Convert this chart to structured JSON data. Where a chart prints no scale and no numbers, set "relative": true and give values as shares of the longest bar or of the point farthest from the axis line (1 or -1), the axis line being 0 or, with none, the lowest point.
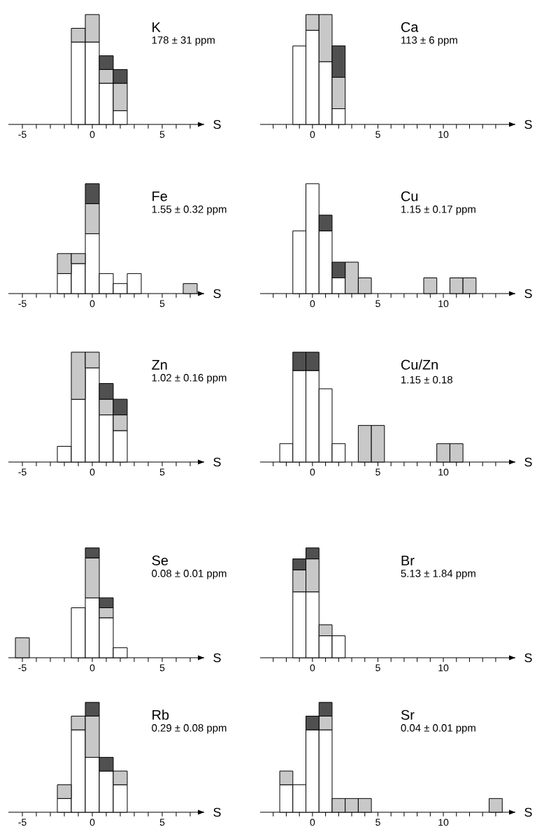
{
  "chart_data": [
    {
      "type": "bar",
      "stacked": true,
      "relative": true,
      "title": "K",
      "subtitle": "178 ± 31 ppm",
      "xlabel": "S",
      "tick_labels": "x",
      "xlim": [
        -6,
        8
      ],
      "xticks": [
        -5,
        {
          "value": -4,
          "label": null
        },
        {
          "value": -3,
          "label": null
        },
        {
          "value": -2,
          "label": null
        },
        {
          "value": -1,
          "label": null
        },
        0,
        {
          "value": 1,
          "label": null
        },
        {
          "value": 2,
          "label": null
        },
        {
          "value": 3,
          "label": null
        },
        {
          "value": 4,
          "label": null
        },
        5,
        {
          "value": 6,
          "label": null
        },
        {
          "value": 7,
          "label": null
        }
      ],
      "x": [
        -1,
        0,
        1,
        2
      ],
      "series": [
        {
          "color": "#ffffff",
          "values": [
            0.75,
            0.75,
            0.375,
            0.125
          ]
        },
        {
          "color": "#c8c8c8",
          "values": [
            0.125,
            0.25,
            0.125,
            0.25
          ]
        },
        {
          "color": "#505050",
          "values": [
            0,
            0,
            0.125,
            0.125
          ]
        }
      ]
    },
    {
      "type": "bar",
      "stacked": true,
      "relative": true,
      "title": "Ca",
      "subtitle": "113 ± 6 ppm",
      "xlabel": "S",
      "tick_labels": "x",
      "xlim": [
        -4,
        15.5
      ],
      "xticks": [
        {
          "value": -3,
          "label": null
        },
        {
          "value": -2,
          "label": null
        },
        {
          "value": -1,
          "label": null
        },
        0,
        {
          "value": 1,
          "label": null
        },
        {
          "value": 2,
          "label": null
        },
        {
          "value": 3,
          "label": null
        },
        {
          "value": 4,
          "label": null
        },
        5,
        {
          "value": 6,
          "label": null
        },
        {
          "value": 7,
          "label": null
        },
        {
          "value": 8,
          "label": null
        },
        {
          "value": 9,
          "label": null
        },
        10,
        {
          "value": 11,
          "label": null
        },
        {
          "value": 12,
          "label": null
        },
        {
          "value": 13,
          "label": null
        },
        {
          "value": 14,
          "label": null
        }
      ],
      "x": [
        -1,
        0,
        1,
        2
      ],
      "series": [
        {
          "color": "#ffffff",
          "values": [
            0.714,
            0.857,
            0.571,
            0.143
          ]
        },
        {
          "color": "#c8c8c8",
          "values": [
            0,
            0.143,
            0.429,
            0.286
          ]
        },
        {
          "color": "#505050",
          "values": [
            0,
            0,
            0,
            0.286
          ]
        }
      ]
    },
    {
      "type": "bar",
      "stacked": true,
      "relative": true,
      "title": "Fe",
      "subtitle": "1.55 ± 0.32 ppm",
      "xlabel": "S",
      "tick_labels": "x",
      "xlim": [
        -6,
        8
      ],
      "xticks": [
        -5,
        {
          "value": -4,
          "label": null
        },
        {
          "value": -3,
          "label": null
        },
        {
          "value": -2,
          "label": null
        },
        {
          "value": -1,
          "label": null
        },
        0,
        {
          "value": 1,
          "label": null
        },
        {
          "value": 2,
          "label": null
        },
        {
          "value": 3,
          "label": null
        },
        {
          "value": 4,
          "label": null
        },
        5,
        {
          "value": 6,
          "label": null
        },
        {
          "value": 7,
          "label": null
        }
      ],
      "x": [
        -2,
        -1,
        0,
        1,
        2,
        3,
        4,
        5,
        6,
        7
      ],
      "series": [
        {
          "color": "#ffffff",
          "values": [
            0.182,
            0.273,
            0.545,
            0.182,
            0.091,
            0.182,
            0,
            0,
            0,
            0
          ]
        },
        {
          "color": "#c8c8c8",
          "values": [
            0.182,
            0.091,
            0.273,
            0,
            0,
            0,
            0,
            0,
            0,
            0.091
          ]
        },
        {
          "color": "#505050",
          "values": [
            0,
            0,
            0.182,
            0,
            0,
            0,
            0,
            0,
            0,
            0
          ]
        }
      ]
    },
    {
      "type": "bar",
      "stacked": true,
      "relative": true,
      "title": "Cu",
      "subtitle": "1.15 ± 0.17 ppm",
      "xlabel": "S",
      "tick_labels": "x",
      "xlim": [
        -4,
        15.5
      ],
      "xticks": [
        {
          "value": -3,
          "label": null
        },
        {
          "value": -2,
          "label": null
        },
        {
          "value": -1,
          "label": null
        },
        0,
        {
          "value": 1,
          "label": null
        },
        {
          "value": 2,
          "label": null
        },
        {
          "value": 3,
          "label": null
        },
        {
          "value": 4,
          "label": null
        },
        5,
        {
          "value": 6,
          "label": null
        },
        {
          "value": 7,
          "label": null
        },
        {
          "value": 8,
          "label": null
        },
        {
          "value": 9,
          "label": null
        },
        10,
        {
          "value": 11,
          "label": null
        },
        {
          "value": 12,
          "label": null
        },
        {
          "value": 13,
          "label": null
        },
        {
          "value": 14,
          "label": null
        }
      ],
      "x": [
        -1,
        0,
        1,
        2,
        3,
        4,
        5,
        6,
        7,
        8,
        9,
        10,
        11,
        12
      ],
      "series": [
        {
          "color": "#ffffff",
          "values": [
            0.571,
            1,
            0.571,
            0.143,
            0,
            0,
            0,
            0,
            0,
            0,
            0,
            0,
            0,
            0
          ]
        },
        {
          "color": "#c8c8c8",
          "values": [
            0,
            0,
            0,
            0,
            0.286,
            0.143,
            0,
            0,
            0,
            0,
            0.143,
            0,
            0.143,
            0.143
          ]
        },
        {
          "color": "#505050",
          "values": [
            0,
            0,
            0.143,
            0.143,
            0,
            0,
            0,
            0,
            0,
            0,
            0,
            0,
            0,
            0
          ]
        }
      ]
    },
    {
      "type": "bar",
      "stacked": true,
      "relative": true,
      "title": "Zn",
      "subtitle": "1.02 ± 0.16 ppm",
      "xlabel": "S",
      "tick_labels": "x",
      "xlim": [
        -6,
        8
      ],
      "xticks": [
        -5,
        {
          "value": -4,
          "label": null
        },
        {
          "value": -3,
          "label": null
        },
        {
          "value": -2,
          "label": null
        },
        {
          "value": -1,
          "label": null
        },
        0,
        {
          "value": 1,
          "label": null
        },
        {
          "value": 2,
          "label": null
        },
        {
          "value": 3,
          "label": null
        },
        {
          "value": 4,
          "label": null
        },
        5,
        {
          "value": 6,
          "label": null
        },
        {
          "value": 7,
          "label": null
        }
      ],
      "x": [
        -2,
        -1,
        0,
        1,
        2
      ],
      "series": [
        {
          "color": "#ffffff",
          "values": [
            0.143,
            0.571,
            0.857,
            0.429,
            0.286
          ]
        },
        {
          "color": "#c8c8c8",
          "values": [
            0,
            0.429,
            0.143,
            0.143,
            0.143
          ]
        },
        {
          "color": "#505050",
          "values": [
            0,
            0,
            0,
            0.143,
            0.143
          ]
        }
      ]
    },
    {
      "type": "bar",
      "stacked": true,
      "relative": true,
      "title": "Cu/Zn",
      "subtitle": "1.15 ± 0.18",
      "xlabel": "S",
      "tick_labels": "x",
      "xlim": [
        -4,
        15.5
      ],
      "xticks": [
        {
          "value": -3,
          "label": null
        },
        {
          "value": -2,
          "label": null
        },
        {
          "value": -1,
          "label": null
        },
        0,
        {
          "value": 1,
          "label": null
        },
        {
          "value": 2,
          "label": null
        },
        {
          "value": 3,
          "label": null
        },
        {
          "value": 4,
          "label": null
        },
        5,
        {
          "value": 6,
          "label": null
        },
        {
          "value": 7,
          "label": null
        },
        {
          "value": 8,
          "label": null
        },
        {
          "value": 9,
          "label": null
        },
        10,
        {
          "value": 11,
          "label": null
        },
        {
          "value": 12,
          "label": null
        },
        {
          "value": 13,
          "label": null
        },
        {
          "value": 14,
          "label": null
        }
      ],
      "x": [
        -2,
        -1,
        0,
        1,
        2,
        3,
        4,
        5,
        6,
        7,
        8,
        9,
        10,
        11
      ],
      "series": [
        {
          "color": "#ffffff",
          "values": [
            0.167,
            0.833,
            0.833,
            0.667,
            0.167,
            0,
            0,
            0,
            0,
            0,
            0,
            0,
            0,
            0
          ]
        },
        {
          "color": "#c8c8c8",
          "values": [
            0,
            0,
            0,
            0,
            0,
            0,
            0.333,
            0.333,
            0,
            0,
            0,
            0,
            0.167,
            0.167
          ]
        },
        {
          "color": "#505050",
          "values": [
            0,
            0.167,
            0.167,
            0,
            0,
            0,
            0,
            0,
            0,
            0,
            0,
            0,
            0,
            0
          ]
        }
      ]
    },
    {
      "type": "bar",
      "stacked": true,
      "relative": true,
      "title": "Se",
      "subtitle": "0.08 ± 0.01 ppm",
      "xlabel": "S",
      "tick_labels": "x",
      "xlim": [
        -6,
        8
      ],
      "xticks": [
        -5,
        {
          "value": -4,
          "label": null
        },
        {
          "value": -3,
          "label": null
        },
        {
          "value": -2,
          "label": null
        },
        {
          "value": -1,
          "label": null
        },
        0,
        {
          "value": 1,
          "label": null
        },
        {
          "value": 2,
          "label": null
        },
        {
          "value": 3,
          "label": null
        },
        {
          "value": 4,
          "label": null
        },
        5,
        {
          "value": 6,
          "label": null
        },
        {
          "value": 7,
          "label": null
        }
      ],
      "x": [
        -5,
        -4,
        -3,
        -2,
        -1,
        0,
        1,
        2
      ],
      "series": [
        {
          "color": "#ffffff",
          "values": [
            0,
            0,
            0,
            0,
            0.455,
            0.545,
            0.364,
            0.091
          ]
        },
        {
          "color": "#c8c8c8",
          "values": [
            0.182,
            0,
            0,
            0,
            0,
            0.364,
            0.091,
            0
          ]
        },
        {
          "color": "#505050",
          "values": [
            0,
            0,
            0,
            0,
            0,
            0.091,
            0.091,
            0
          ]
        }
      ]
    },
    {
      "type": "bar",
      "stacked": true,
      "relative": true,
      "title": "Br",
      "subtitle": "5.13 ± 1.84 ppm",
      "xlabel": "S",
      "tick_labels": "x",
      "xlim": [
        -4,
        15.5
      ],
      "xticks": [
        {
          "value": -3,
          "label": null
        },
        {
          "value": -2,
          "label": null
        },
        {
          "value": -1,
          "label": null
        },
        0,
        {
          "value": 1,
          "label": null
        },
        {
          "value": 2,
          "label": null
        },
        {
          "value": 3,
          "label": null
        },
        {
          "value": 4,
          "label": null
        },
        5,
        {
          "value": 6,
          "label": null
        },
        {
          "value": 7,
          "label": null
        },
        {
          "value": 8,
          "label": null
        },
        {
          "value": 9,
          "label": null
        },
        10,
        {
          "value": 11,
          "label": null
        },
        {
          "value": 12,
          "label": null
        },
        {
          "value": 13,
          "label": null
        },
        {
          "value": 14,
          "label": null
        }
      ],
      "x": [
        -1,
        0,
        1,
        2
      ],
      "series": [
        {
          "color": "#ffffff",
          "values": [
            0.6,
            0.6,
            0.2,
            0.2
          ]
        },
        {
          "color": "#c8c8c8",
          "values": [
            0.2,
            0.3,
            0.1,
            0
          ]
        },
        {
          "color": "#505050",
          "values": [
            0.1,
            0.1,
            0,
            0
          ]
        }
      ]
    },
    {
      "type": "bar",
      "stacked": true,
      "relative": true,
      "title": "Rb",
      "subtitle": "0.29 ± 0.08 ppm",
      "xlabel": "S",
      "tick_labels": "x",
      "xlim": [
        -6,
        8
      ],
      "xticks": [
        -5,
        {
          "value": -4,
          "label": null
        },
        {
          "value": -3,
          "label": null
        },
        {
          "value": -2,
          "label": null
        },
        {
          "value": -1,
          "label": null
        },
        0,
        {
          "value": 1,
          "label": null
        },
        {
          "value": 2,
          "label": null
        },
        {
          "value": 3,
          "label": null
        },
        {
          "value": 4,
          "label": null
        },
        5,
        {
          "value": 6,
          "label": null
        },
        {
          "value": 7,
          "label": null
        }
      ],
      "x": [
        -2,
        -1,
        0,
        1,
        2
      ],
      "series": [
        {
          "color": "#ffffff",
          "values": [
            0.125,
            0.75,
            0.5,
            0.375,
            0.25
          ]
        },
        {
          "color": "#c8c8c8",
          "values": [
            0.125,
            0.125,
            0.375,
            0,
            0.125
          ]
        },
        {
          "color": "#505050",
          "values": [
            0,
            0,
            0.125,
            0.125,
            0
          ]
        }
      ]
    },
    {
      "type": "bar",
      "stacked": true,
      "relative": true,
      "title": "Sr",
      "subtitle": "0.04 ± 0.01 ppm",
      "xlabel": "S",
      "tick_labels": "x",
      "xlim": [
        -4,
        15.5
      ],
      "xticks": [
        {
          "value": -3,
          "label": null
        },
        {
          "value": -2,
          "label": null
        },
        {
          "value": -1,
          "label": null
        },
        0,
        {
          "value": 1,
          "label": null
        },
        {
          "value": 2,
          "label": null
        },
        {
          "value": 3,
          "label": null
        },
        {
          "value": 4,
          "label": null
        },
        5,
        {
          "value": 6,
          "label": null
        },
        {
          "value": 7,
          "label": null
        },
        {
          "value": 8,
          "label": null
        },
        {
          "value": 9,
          "label": null
        },
        10,
        {
          "value": 11,
          "label": null
        },
        {
          "value": 12,
          "label": null
        },
        {
          "value": 13,
          "label": null
        },
        {
          "value": 14,
          "label": null
        }
      ],
      "x": [
        -2,
        -1,
        0,
        1,
        2,
        3,
        4,
        5,
        6,
        7,
        8,
        9,
        10,
        11,
        12,
        13,
        14
      ],
      "series": [
        {
          "color": "#ffffff",
          "values": [
            0.25,
            0.25,
            0.75,
            0.75,
            0,
            0,
            0,
            0,
            0,
            0,
            0,
            0,
            0,
            0,
            0,
            0,
            0
          ]
        },
        {
          "color": "#c8c8c8",
          "values": [
            0.125,
            0,
            0,
            0.125,
            0.125,
            0.125,
            0.125,
            0,
            0,
            0,
            0,
            0,
            0,
            0,
            0,
            0,
            0.125
          ]
        },
        {
          "color": "#505050",
          "values": [
            0,
            0,
            0.125,
            0.125,
            0,
            0,
            0,
            0,
            0,
            0,
            0,
            0,
            0,
            0,
            0,
            0,
            0
          ]
        }
      ]
    }
  ]
}
